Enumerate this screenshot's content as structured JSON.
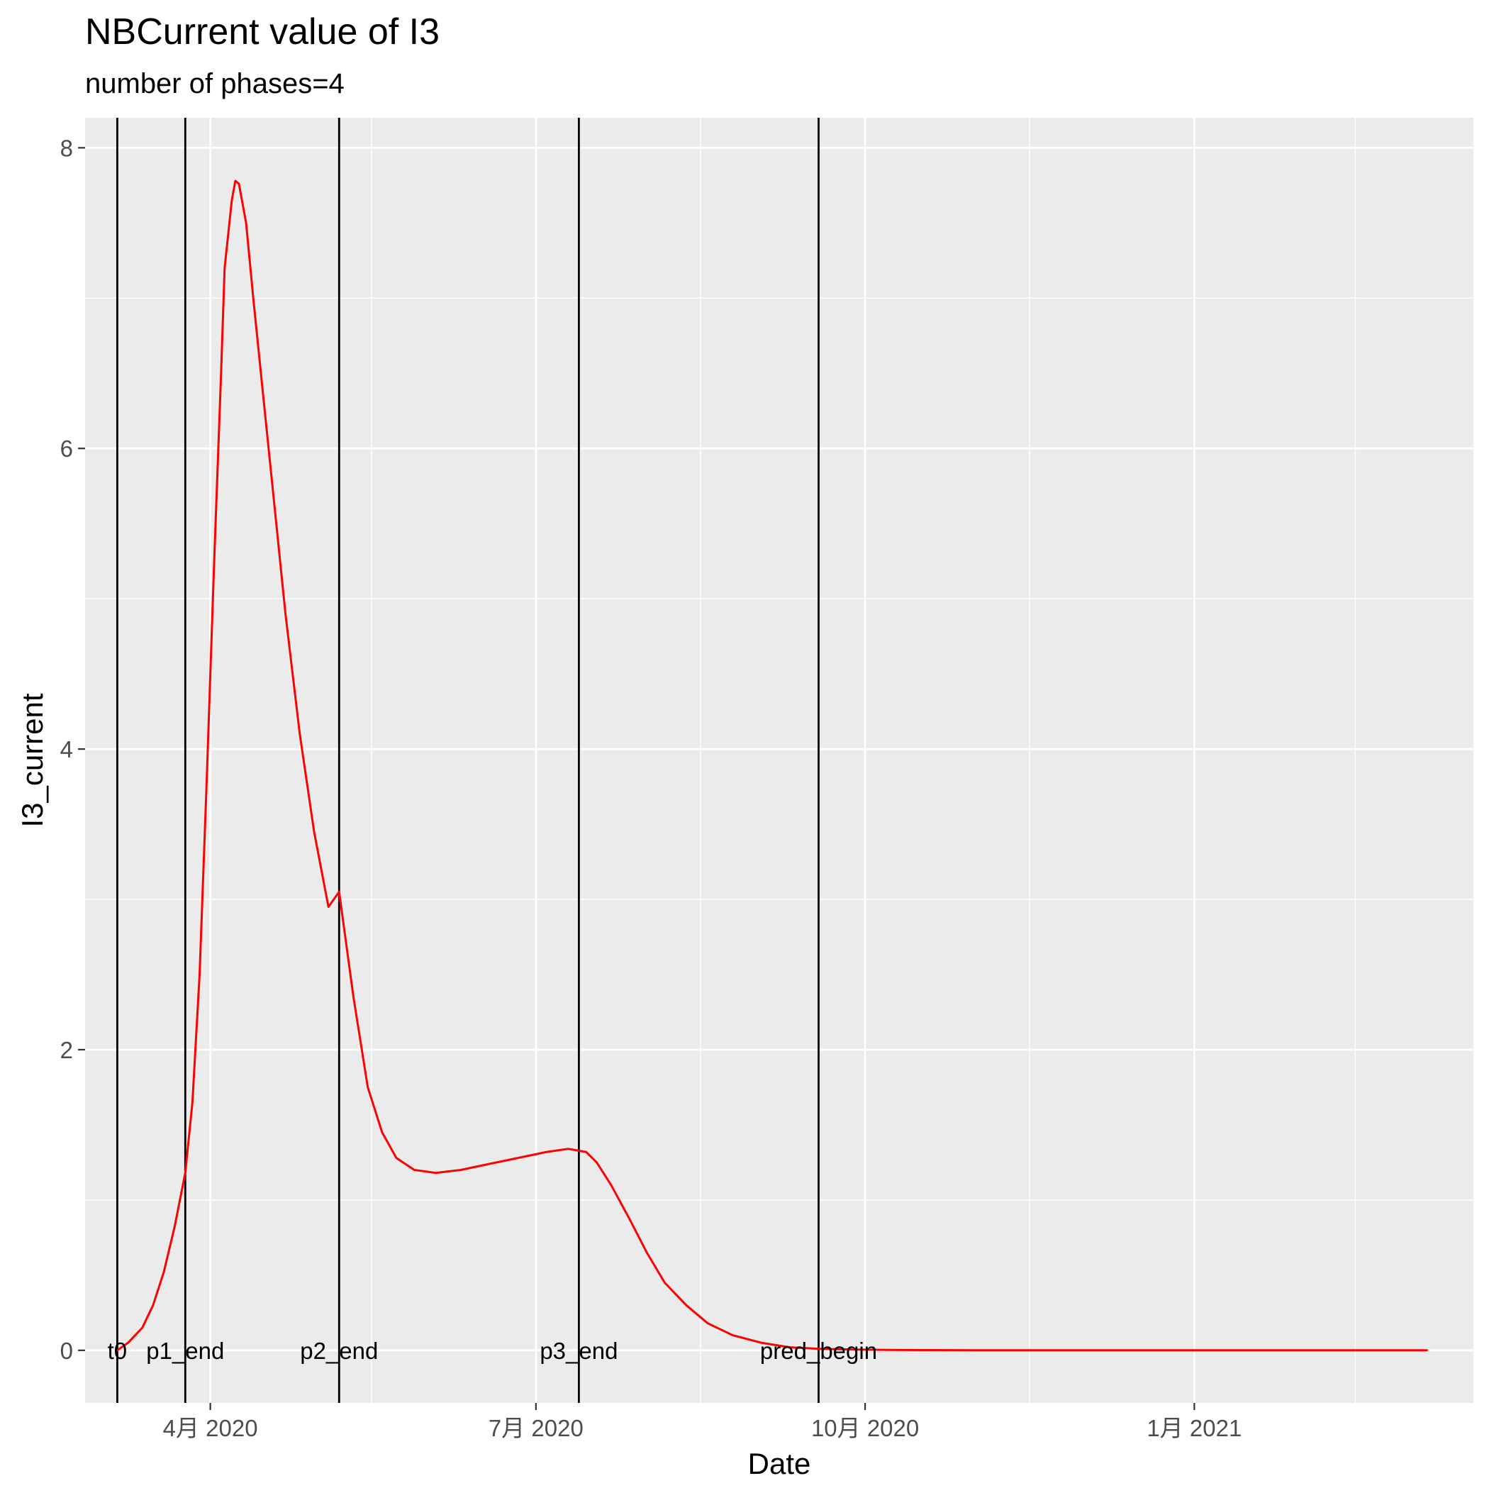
{
  "chart_data": {
    "type": "line",
    "title": "NBCurrent value of I3",
    "subtitle": "number of phases=4",
    "xlabel": "Date",
    "ylabel": "I3_current",
    "ylim": [
      -0.35,
      8.2
    ],
    "xlim": [
      "2020-02-26",
      "2021-03-20"
    ],
    "x_ticks": [
      {
        "date": "2020-04-01",
        "label": "4月 2020"
      },
      {
        "date": "2020-07-01",
        "label": "7月 2020"
      },
      {
        "date": "2020-10-01",
        "label": "10月 2020"
      },
      {
        "date": "2021-01-01",
        "label": "1月 2021"
      }
    ],
    "x_minor_ticks": [
      "2020-02-15",
      "2020-05-16",
      "2020-08-16",
      "2020-11-16",
      "2021-02-15"
    ],
    "y_ticks": [
      0,
      2,
      4,
      6,
      8
    ],
    "y_minor_ticks": [
      1,
      3,
      5,
      7
    ],
    "grid": true,
    "vlines": [
      {
        "date": "2020-03-06",
        "label": "t0"
      },
      {
        "date": "2020-03-25",
        "label": "p1_end"
      },
      {
        "date": "2020-05-07",
        "label": "p2_end"
      },
      {
        "date": "2020-07-13",
        "label": "p3_end"
      },
      {
        "date": "2020-09-18",
        "label": "pred_begin"
      }
    ],
    "series": [
      {
        "color": "#ff0000",
        "x": [
          "2020-03-06",
          "2020-03-09",
          "2020-03-13",
          "2020-03-16",
          "2020-03-19",
          "2020-03-22",
          "2020-03-25",
          "2020-03-27",
          "2020-03-29",
          "2020-03-31",
          "2020-04-02",
          "2020-04-04",
          "2020-04-05",
          "2020-04-07",
          "2020-04-08",
          "2020-04-09",
          "2020-04-11",
          "2020-04-13",
          "2020-04-16",
          "2020-04-19",
          "2020-04-22",
          "2020-04-26",
          "2020-04-30",
          "2020-05-04",
          "2020-05-07",
          "2020-05-11",
          "2020-05-15",
          "2020-05-19",
          "2020-05-23",
          "2020-05-28",
          "2020-06-03",
          "2020-06-10",
          "2020-06-18",
          "2020-06-26",
          "2020-07-04",
          "2020-07-10",
          "2020-07-15",
          "2020-07-18",
          "2020-07-22",
          "2020-07-27",
          "2020-08-01",
          "2020-08-06",
          "2020-08-12",
          "2020-08-18",
          "2020-08-25",
          "2020-09-02",
          "2020-09-10",
          "2020-09-18",
          "2020-09-28",
          "2020-10-10",
          "2020-11-01",
          "2020-12-01",
          "2021-01-01",
          "2021-02-01",
          "2021-03-07"
        ],
        "y": [
          0.0,
          0.05,
          0.15,
          0.3,
          0.52,
          0.82,
          1.18,
          1.65,
          2.5,
          3.8,
          5.2,
          6.5,
          7.2,
          7.65,
          7.78,
          7.76,
          7.5,
          7.0,
          6.3,
          5.6,
          4.9,
          4.1,
          3.45,
          2.95,
          3.05,
          2.35,
          1.75,
          1.45,
          1.28,
          1.2,
          1.18,
          1.2,
          1.24,
          1.28,
          1.32,
          1.34,
          1.32,
          1.25,
          1.1,
          0.88,
          0.65,
          0.45,
          0.3,
          0.18,
          0.1,
          0.05,
          0.02,
          0.01,
          0.005,
          0.002,
          0.0,
          0.0,
          0.0,
          0.0,
          0.0
        ]
      }
    ]
  }
}
